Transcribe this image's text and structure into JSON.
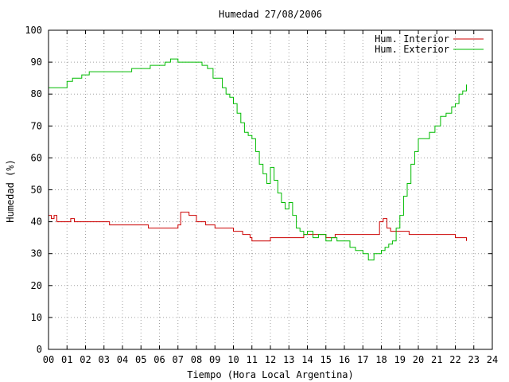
{
  "chart_data": {
    "type": "line",
    "title": "Humedad 27/08/2006",
    "xlabel": "Tiempo (Hora Local Argentina)",
    "ylabel": "Humedad (%)",
    "xlim": [
      0,
      24
    ],
    "ylim": [
      0,
      100
    ],
    "x_ticks": [
      "00",
      "01",
      "02",
      "03",
      "04",
      "05",
      "06",
      "07",
      "08",
      "09",
      "10",
      "11",
      "12",
      "13",
      "14",
      "15",
      "16",
      "17",
      "18",
      "19",
      "20",
      "21",
      "22",
      "23",
      "24"
    ],
    "y_ticks": [
      "0",
      "10",
      "20",
      "30",
      "40",
      "50",
      "60",
      "70",
      "80",
      "90",
      "100"
    ],
    "grid": true,
    "legend_position": "top-right",
    "series": [
      {
        "name": "Hum. Interior",
        "color": "#cc0000",
        "x": [
          0,
          0.15,
          0.3,
          0.45,
          1.0,
          1.2,
          1.4,
          2.0,
          3.0,
          3.3,
          3.5,
          4.0,
          4.4,
          5.0,
          5.4,
          5.8,
          6.2,
          6.8,
          7.0,
          7.15,
          7.3,
          7.6,
          7.8,
          8.0,
          8.5,
          9.0,
          9.5,
          10.0,
          10.5,
          10.9,
          11.0,
          11.5,
          12.0,
          12.5,
          13.0,
          13.4,
          13.8,
          14.0,
          14.5,
          15.0,
          15.5,
          16.0,
          16.5,
          17.0,
          17.6,
          17.9,
          18.1,
          18.3,
          18.5,
          18.8,
          19.0,
          19.5,
          20.0,
          20.5,
          21.0,
          21.5,
          21.8,
          22.0,
          22.5,
          22.6
        ],
        "values": [
          42,
          41,
          42,
          40,
          40,
          41,
          40,
          40,
          40,
          39,
          39,
          39,
          39,
          39,
          38,
          38,
          38,
          38,
          39,
          43,
          43,
          42,
          42,
          40,
          39,
          38,
          38,
          37,
          36,
          35,
          34,
          34,
          35,
          35,
          35,
          35,
          36,
          36,
          36,
          35,
          36,
          36,
          36,
          36,
          36,
          40,
          41,
          38,
          37,
          37,
          37,
          36,
          36,
          36,
          36,
          36,
          36,
          35,
          35,
          34
        ]
      },
      {
        "name": "Hum. Exterior",
        "color": "#00bb00",
        "x": [
          0,
          0.8,
          1.0,
          1.3,
          1.8,
          2.2,
          2.6,
          3.0,
          3.5,
          4.0,
          4.5,
          5.0,
          5.5,
          6.0,
          6.3,
          6.6,
          7.0,
          7.5,
          8.0,
          8.3,
          8.6,
          8.9,
          9.1,
          9.4,
          9.6,
          9.8,
          10.0,
          10.2,
          10.4,
          10.6,
          10.8,
          11.0,
          11.2,
          11.4,
          11.6,
          11.8,
          12.0,
          12.2,
          12.4,
          12.6,
          12.8,
          13.0,
          13.2,
          13.4,
          13.6,
          13.8,
          14.0,
          14.3,
          14.6,
          15.0,
          15.3,
          15.6,
          16.0,
          16.3,
          16.6,
          17.0,
          17.3,
          17.6,
          18.0,
          18.2,
          18.4,
          18.6,
          18.8,
          19.0,
          19.2,
          19.4,
          19.6,
          19.8,
          20.0,
          20.3,
          20.6,
          20.9,
          21.2,
          21.5,
          21.8,
          22.0,
          22.2,
          22.4,
          22.6
        ],
        "values": [
          82,
          82,
          84,
          85,
          86,
          87,
          87,
          87,
          87,
          87,
          88,
          88,
          89,
          89,
          90,
          91,
          90,
          90,
          90,
          89,
          88,
          85,
          85,
          82,
          80,
          79,
          77,
          74,
          71,
          68,
          67,
          66,
          62,
          58,
          55,
          52,
          57,
          53,
          49,
          46,
          44,
          46,
          42,
          38,
          37,
          36,
          37,
          35,
          36,
          34,
          35,
          34,
          34,
          32,
          31,
          30,
          28,
          30,
          31,
          32,
          33,
          34,
          38,
          42,
          48,
          52,
          58,
          62,
          66,
          66,
          68,
          70,
          73,
          74,
          76,
          77,
          80,
          81,
          83
        ]
      }
    ]
  }
}
